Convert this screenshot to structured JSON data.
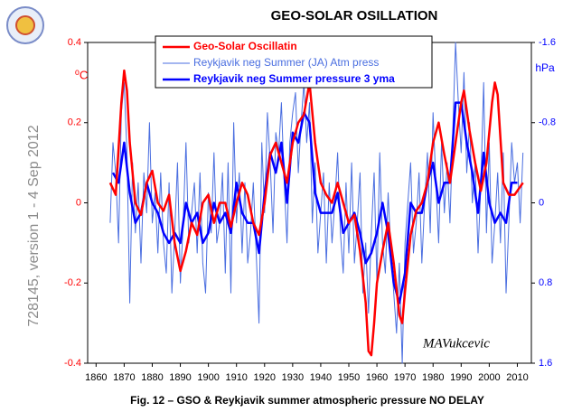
{
  "chart_data": {
    "type": "line",
    "title": "GEO-SOLAR  OSILLATION",
    "caption": "Fig. 12 – GSO & Reykjavik summer atmospheric  pressure  NO DELAY",
    "side_text": "728145, version 1 - 4 Sep 2012",
    "ylabel": "⁰C",
    "y2label": "hPa",
    "annotation": "MAVukcevic",
    "xlim": [
      1857,
      2015
    ],
    "xticks": [
      1860,
      1870,
      1880,
      1890,
      1900,
      1910,
      1920,
      1930,
      1940,
      1950,
      1960,
      1970,
      1980,
      1990,
      2000,
      2010
    ],
    "ylim": [
      -0.4,
      0.4
    ],
    "yticks": [
      0.4,
      0.2,
      0,
      -0.2,
      -0.4
    ],
    "y2lim": [
      1.6,
      -1.6
    ],
    "y2ticks": [
      -1.6,
      -0.8,
      0,
      0.8,
      1.6
    ],
    "grid": false,
    "legend": "top",
    "series": [
      {
        "name": "Geo-Solar Oscillatin",
        "color": "#ff0000",
        "width": 2.5,
        "x": [
          1865,
          1867,
          1869,
          1870,
          1871,
          1872,
          1874,
          1876,
          1878,
          1880,
          1882,
          1884,
          1886,
          1888,
          1890,
          1892,
          1894,
          1896,
          1898,
          1900,
          1902,
          1904,
          1906,
          1908,
          1910,
          1912,
          1914,
          1916,
          1918,
          1920,
          1922,
          1924,
          1926,
          1928,
          1930,
          1932,
          1934,
          1936,
          1938,
          1940,
          1942,
          1944,
          1946,
          1948,
          1950,
          1952,
          1954,
          1956,
          1957,
          1958,
          1959,
          1960,
          1962,
          1964,
          1966,
          1968,
          1969,
          1970,
          1972,
          1974,
          1976,
          1978,
          1980,
          1982,
          1984,
          1986,
          1988,
          1990,
          1991,
          1993,
          1995,
          1997,
          1999,
          2001,
          2002,
          2003,
          2005,
          2007,
          2009,
          2012
        ],
        "values": [
          0.05,
          0.02,
          0.25,
          0.33,
          0.28,
          0.15,
          0.0,
          -0.03,
          0.05,
          0.08,
          0.0,
          -0.02,
          0.02,
          -0.1,
          -0.17,
          -0.12,
          -0.05,
          -0.08,
          0.0,
          0.02,
          -0.05,
          0.0,
          0.0,
          -0.06,
          0.0,
          0.05,
          0.02,
          -0.05,
          -0.08,
          0.0,
          0.12,
          0.15,
          0.1,
          0.05,
          0.15,
          0.2,
          0.22,
          0.3,
          0.15,
          0.05,
          0.02,
          0.0,
          0.05,
          0.0,
          -0.05,
          -0.03,
          -0.12,
          -0.25,
          -0.37,
          -0.38,
          -0.3,
          -0.2,
          -0.12,
          -0.05,
          -0.15,
          -0.28,
          -0.3,
          -0.22,
          -0.08,
          -0.02,
          0.0,
          0.05,
          0.15,
          0.2,
          0.12,
          0.05,
          0.15,
          0.25,
          0.28,
          0.18,
          0.1,
          0.03,
          0.1,
          0.25,
          0.3,
          0.27,
          0.05,
          0.02,
          0.02,
          0.05
        ]
      },
      {
        "name": "Reykjavik neg Summer (JA) Atm press",
        "color": "#4a6ee0",
        "width": 1,
        "axis": "y2",
        "x": [
          1865,
          1866,
          1867,
          1868,
          1869,
          1870,
          1871,
          1872,
          1873,
          1874,
          1875,
          1876,
          1877,
          1878,
          1879,
          1880,
          1881,
          1882,
          1883,
          1884,
          1885,
          1886,
          1887,
          1888,
          1889,
          1890,
          1891,
          1892,
          1893,
          1894,
          1895,
          1896,
          1897,
          1898,
          1899,
          1900,
          1901,
          1902,
          1903,
          1904,
          1905,
          1906,
          1907,
          1908,
          1909,
          1910,
          1911,
          1912,
          1913,
          1914,
          1915,
          1916,
          1917,
          1918,
          1919,
          1920,
          1921,
          1922,
          1923,
          1924,
          1925,
          1926,
          1927,
          1928,
          1929,
          1930,
          1931,
          1932,
          1933,
          1934,
          1935,
          1936,
          1937,
          1938,
          1939,
          1940,
          1941,
          1942,
          1943,
          1944,
          1945,
          1946,
          1947,
          1948,
          1949,
          1950,
          1951,
          1952,
          1953,
          1954,
          1955,
          1956,
          1957,
          1958,
          1959,
          1960,
          1961,
          1962,
          1963,
          1964,
          1965,
          1966,
          1967,
          1968,
          1969,
          1970,
          1971,
          1972,
          1973,
          1974,
          1975,
          1976,
          1977,
          1978,
          1979,
          1980,
          1981,
          1982,
          1983,
          1984,
          1985,
          1986,
          1987,
          1988,
          1989,
          1990,
          1991,
          1992,
          1993,
          1994,
          1995,
          1996,
          1997,
          1998,
          1999,
          2000,
          2001,
          2002,
          2003,
          2004,
          2005,
          2006,
          2007,
          2008,
          2009,
          2010,
          2011,
          2012
        ],
        "values": [
          0.2,
          -0.6,
          -0.3,
          0.4,
          -0.9,
          -1.2,
          -0.5,
          1.0,
          -0.4,
          0.3,
          -0.2,
          0.6,
          -0.3,
          0.1,
          -0.8,
          0.2,
          -0.1,
          0.5,
          -0.3,
          0.4,
          0.7,
          -0.2,
          0.9,
          0.3,
          -0.4,
          0.8,
          0.2,
          -0.6,
          0.4,
          0.1,
          -0.2,
          0.5,
          -0.3,
          0.6,
          0.9,
          -0.1,
          0.3,
          -0.5,
          0.4,
          0.2,
          -0.3,
          0.7,
          -0.4,
          0.9,
          -0.8,
          0.2,
          -0.3,
          0.5,
          -0.2,
          0.6,
          0.3,
          -0.2,
          0.5,
          1.2,
          -0.6,
          0.1,
          -0.9,
          -0.4,
          0.3,
          -0.7,
          -0.5,
          -1.0,
          -0.2,
          0.4,
          -0.6,
          -0.9,
          -1.1,
          -0.3,
          -0.8,
          -1.2,
          -0.6,
          -1.0,
          0.2,
          -0.4,
          0.5,
          0.1,
          -0.3,
          0.6,
          -0.2,
          0.4,
          0.0,
          -0.5,
          0.3,
          0.7,
          -0.2,
          0.5,
          -0.4,
          0.6,
          0.2,
          -0.3,
          0.9,
          0.4,
          1.1,
          0.3,
          -0.3,
          0.8,
          -0.5,
          0.4,
          0.7,
          -0.1,
          0.5,
          0.9,
          1.3,
          0.6,
          1.6,
          0.4,
          0.0,
          -0.4,
          0.5,
          0.2,
          -0.3,
          0.6,
          0.0,
          -0.5,
          0.3,
          -0.9,
          -0.2,
          0.4,
          -0.6,
          0.1,
          -0.4,
          0.2,
          -0.7,
          -1.6,
          -1.0,
          -0.5,
          -1.3,
          -0.3,
          -0.8,
          0.0,
          -0.4,
          0.5,
          -0.2,
          -1.2,
          0.3,
          -0.6,
          0.6,
          0.2,
          -0.3,
          0.4,
          -0.5,
          0.9,
          0.2,
          -0.6,
          -0.2,
          -0.4,
          0.2,
          -0.5
        ]
      },
      {
        "name": "Reykjavik neg Summer pressure 3 yma",
        "color": "#0000ff",
        "width": 2.5,
        "axis": "y2",
        "x": [
          1866,
          1868,
          1870,
          1872,
          1874,
          1876,
          1878,
          1880,
          1882,
          1884,
          1886,
          1888,
          1890,
          1892,
          1894,
          1896,
          1898,
          1900,
          1902,
          1904,
          1906,
          1908,
          1910,
          1912,
          1914,
          1916,
          1918,
          1920,
          1922,
          1924,
          1926,
          1928,
          1930,
          1932,
          1934,
          1936,
          1938,
          1940,
          1942,
          1944,
          1946,
          1948,
          1950,
          1952,
          1954,
          1956,
          1958,
          1960,
          1962,
          1964,
          1966,
          1968,
          1970,
          1972,
          1974,
          1976,
          1978,
          1980,
          1982,
          1984,
          1986,
          1988,
          1990,
          1992,
          1994,
          1996,
          1998,
          2000,
          2002,
          2004,
          2006,
          2008,
          2010
        ],
        "values": [
          -0.3,
          -0.2,
          -0.6,
          -0.1,
          0.2,
          0.1,
          -0.2,
          0.0,
          0.1,
          0.3,
          0.4,
          0.3,
          0.4,
          0.0,
          0.2,
          0.1,
          0.4,
          0.3,
          0.0,
          0.2,
          0.1,
          0.3,
          -0.2,
          0.1,
          0.2,
          0.2,
          0.5,
          -0.1,
          -0.5,
          -0.3,
          -0.6,
          0.0,
          -0.7,
          -0.6,
          -0.9,
          -0.8,
          -0.1,
          0.1,
          0.1,
          0.1,
          -0.1,
          0.3,
          0.2,
          0.1,
          0.3,
          0.6,
          0.5,
          0.3,
          0.0,
          0.3,
          0.8,
          1.0,
          0.7,
          0.0,
          0.1,
          0.1,
          -0.2,
          -0.4,
          0.0,
          -0.2,
          -0.2,
          -1.0,
          -1.0,
          -0.6,
          -0.3,
          0.1,
          -0.5,
          0.0,
          0.2,
          0.1,
          0.2,
          -0.2,
          -0.2
        ]
      }
    ]
  }
}
